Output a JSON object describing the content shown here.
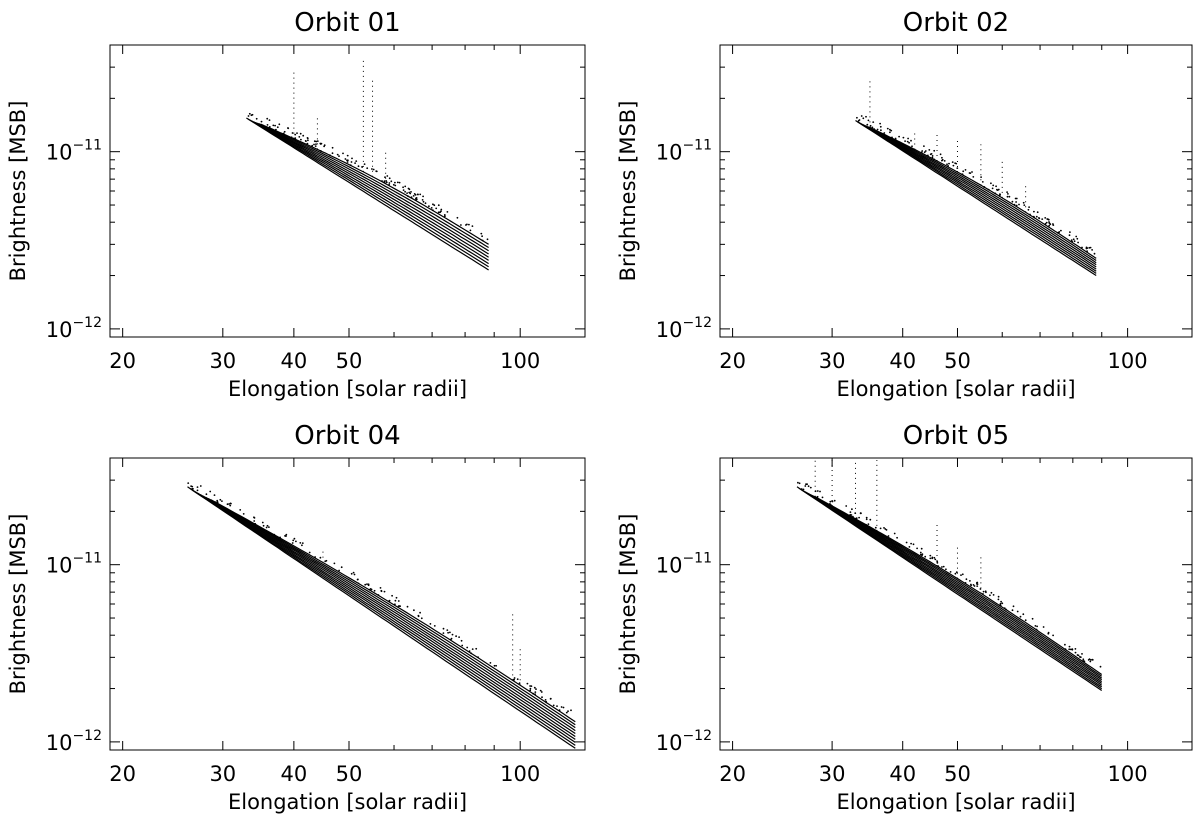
{
  "chart_data": [
    {
      "type": "scatter",
      "title": "Orbit 01",
      "xlabel": "Elongation [solar radii]",
      "ylabel": "Brightness [MSB]",
      "xscale": "log",
      "yscale": "log",
      "xlim": [
        19,
        130
      ],
      "ylim": [
        9e-13,
        4e-11
      ],
      "xticks": [
        20,
        30,
        40,
        50,
        100
      ],
      "yticks": [
        {
          "base": "10",
          "exp": "−12",
          "value": 1e-12
        },
        {
          "base": "10",
          "exp": "−11",
          "value": 1e-11
        }
      ],
      "band": {
        "x_start": 33,
        "x_end": 88,
        "y_start": 1.55e-11,
        "y_end_low": 2.15e-12,
        "y_end_high": 3e-12,
        "curves": 9
      },
      "spikes": [
        {
          "x": 40,
          "y": 2.9e-11
        },
        {
          "x": 44,
          "y": 1.6e-11
        },
        {
          "x": 53,
          "y": 3.3e-11
        },
        {
          "x": 55,
          "y": 2.6e-11
        },
        {
          "x": 58,
          "y": 1e-11
        }
      ]
    },
    {
      "type": "scatter",
      "title": "Orbit 02",
      "xlabel": "Elongation [solar radii]",
      "ylabel": "Brightness [MSB]",
      "xscale": "log",
      "yscale": "log",
      "xlim": [
        19,
        130
      ],
      "ylim": [
        9e-13,
        4e-11
      ],
      "xticks": [
        20,
        30,
        40,
        50,
        100
      ],
      "yticks": [
        {
          "base": "10",
          "exp": "−12",
          "value": 1e-12
        },
        {
          "base": "10",
          "exp": "−11",
          "value": 1e-11
        }
      ],
      "band": {
        "x_start": 33,
        "x_end": 88,
        "y_start": 1.5e-11,
        "y_end_low": 2e-12,
        "y_end_high": 2.5e-12,
        "curves": 9
      },
      "spikes": [
        {
          "x": 35,
          "y": 2.6e-11
        },
        {
          "x": 42,
          "y": 1.3e-11
        },
        {
          "x": 46,
          "y": 1.25e-11
        },
        {
          "x": 50,
          "y": 1.2e-11
        },
        {
          "x": 55,
          "y": 1.1e-11
        },
        {
          "x": 60,
          "y": 9e-12
        },
        {
          "x": 66,
          "y": 6.5e-12
        }
      ]
    },
    {
      "type": "scatter",
      "title": "Orbit 04",
      "xlabel": "Elongation [solar radii]",
      "ylabel": "Brightness [MSB]",
      "xscale": "log",
      "yscale": "log",
      "xlim": [
        19,
        130
      ],
      "ylim": [
        9e-13,
        4e-11
      ],
      "xticks": [
        20,
        30,
        40,
        50,
        100
      ],
      "yticks": [
        {
          "base": "10",
          "exp": "−12",
          "value": 1e-12
        },
        {
          "base": "10",
          "exp": "−11",
          "value": 1e-11
        }
      ],
      "band": {
        "x_start": 26,
        "x_end": 125,
        "y_start": 2.75e-11,
        "y_end_low": 9.2e-13,
        "y_end_high": 1.3e-12,
        "curves": 10
      },
      "spikes": [
        {
          "x": 97,
          "y": 5.5e-12
        },
        {
          "x": 100,
          "y": 3.5e-12
        },
        {
          "x": 45,
          "y": 1.2e-11
        },
        {
          "x": 52,
          "y": 8e-12
        }
      ]
    },
    {
      "type": "scatter",
      "title": "Orbit 05",
      "xlabel": "Elongation [solar radii]",
      "ylabel": "Brightness [MSB]",
      "xscale": "log",
      "yscale": "log",
      "xlim": [
        19,
        130
      ],
      "ylim": [
        9e-13,
        4e-11
      ],
      "xticks": [
        20,
        30,
        40,
        50,
        100
      ],
      "yticks": [
        {
          "base": "10",
          "exp": "−12",
          "value": 1e-12
        },
        {
          "base": "10",
          "exp": "−11",
          "value": 1e-11
        }
      ],
      "band": {
        "x_start": 26,
        "x_end": 90,
        "y_start": 2.75e-11,
        "y_end_low": 1.95e-12,
        "y_end_high": 2.4e-12,
        "curves": 10
      },
      "spikes": [
        {
          "x": 28,
          "y": 3.9e-11
        },
        {
          "x": 30,
          "y": 3.9e-11
        },
        {
          "x": 33,
          "y": 3.9e-11
        },
        {
          "x": 36,
          "y": 3.9e-11
        },
        {
          "x": 46,
          "y": 1.75e-11
        },
        {
          "x": 50,
          "y": 1.3e-11
        },
        {
          "x": 55,
          "y": 1.1e-11
        }
      ]
    }
  ]
}
